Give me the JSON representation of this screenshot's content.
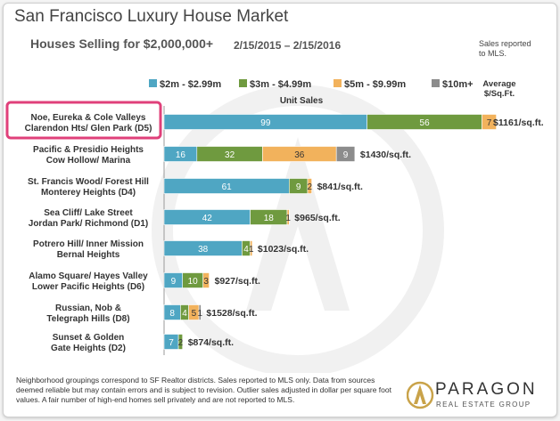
{
  "header": {
    "title": "San Francisco Luxury House Market",
    "subtitle": "Houses Selling for $2,000,000+",
    "date_range": "2/15/2015 – 2/15/2016",
    "sales_note": "Sales reported to MLS."
  },
  "chart_data": {
    "type": "bar",
    "orientation": "horizontal",
    "stacked": true,
    "xlabel": "Unit Sales",
    "secondary_label": "Average $/Sq.Ft.",
    "legend_position": "top",
    "highlighted_category": "Noe, Eureka & Cole Valleys Clarendon Hts/ Glen Park (D5)",
    "categories": [
      "Noe, Eureka & Cole Valleys Clarendon Hts/ Glen Park (D5)",
      "Pacific & Presidio Heights Cow Hollow/ Marina",
      "St. Francis Wood/ Forest Hill Monterey Heights (D4)",
      "Sea Cliff/ Lake Street Jordan Park/ Richmond (D1)",
      "Potrero Hill/ Inner Mission Bernal Heights",
      "Alamo Square/ Hayes Valley Lower Pacific Heights (D6)",
      "Russian, Nob & Telegraph Hills (D8)",
      "Sunset & Golden Gate Heights (D2)"
    ],
    "category_lines": [
      [
        "Noe, Eureka & Cole Valleys",
        "Clarendon Hts/ Glen Park (D5)"
      ],
      [
        "Pacific & Presidio Heights",
        "Cow Hollow/ Marina"
      ],
      [
        "St. Francis Wood/ Forest Hill",
        "Monterey Heights (D4)"
      ],
      [
        "Sea Cliff/ Lake Street",
        "Jordan Park/ Richmond (D1)"
      ],
      [
        "Potrero Hill/ Inner Mission",
        "Bernal Heights"
      ],
      [
        "Alamo Square/ Hayes Valley",
        "Lower Pacific Heights (D6)"
      ],
      [
        "Russian, Nob &",
        "Telegraph Hills (D8)"
      ],
      [
        "Sunset & Golden",
        "Gate Heights (D2)"
      ]
    ],
    "series": [
      {
        "name": "$2m - $2.99m",
        "color": "#4fa6c3",
        "values": [
          99,
          16,
          61,
          42,
          38,
          9,
          8,
          7
        ]
      },
      {
        "name": "$3m - $4.99m",
        "color": "#6f9a3f",
        "values": [
          56,
          32,
          9,
          18,
          4,
          10,
          4,
          2
        ]
      },
      {
        "name": "$5m - $9.99m",
        "color": "#f2b25c",
        "values": [
          7,
          36,
          2,
          1,
          1,
          3,
          5,
          0
        ]
      },
      {
        "name": "$10m+",
        "color": "#8c8c8c",
        "values": [
          0,
          9,
          0,
          0,
          0,
          0,
          1,
          0
        ]
      }
    ],
    "segment_labels": [
      [
        "99",
        "56",
        "7",
        ""
      ],
      [
        "16",
        "32",
        "36",
        "9"
      ],
      [
        "61",
        "9",
        "2",
        ""
      ],
      [
        "42",
        "18",
        "1",
        ""
      ],
      [
        "38",
        "4",
        "1",
        ""
      ],
      [
        "9",
        "10",
        "3",
        ""
      ],
      [
        "8",
        "4",
        "5",
        "1"
      ],
      [
        "7",
        "2",
        "",
        ""
      ]
    ],
    "avg_price_per_sqft": [
      "$1161/sq.ft.",
      "$1430/sq.ft.",
      "$841/sq.ft.",
      "$965/sq.ft.",
      "$1023/sq.ft.",
      "$927/sq.ft.",
      "$1528/sq.ft.",
      "$874/sq.ft."
    ]
  },
  "footer": {
    "note": "Neighborhood groupings correspond to SF Realtor districts. Sales reported to MLS only. Data from sources deemed reliable but may contain errors and is subject to revision. Outlier sales adjusted in dollar per square foot values. A fair number of high-end homes sell privately and are not reported to MLS.",
    "logo_name": "PARAGON",
    "logo_subtitle": "REAL ESTATE GROUP"
  }
}
